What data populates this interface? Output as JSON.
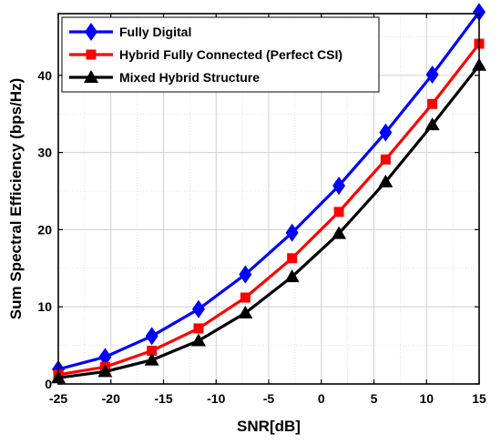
{
  "chart_data": {
    "type": "line",
    "title": "",
    "xlabel": "SNR[dB]",
    "ylabel": "Sum Spectral Efficiency (bps/Hz)",
    "xlim": [
      -25,
      15
    ],
    "ylim": [
      0,
      48
    ],
    "x_ticks": [
      -25,
      -20,
      -15,
      -10,
      -5,
      0,
      5,
      10,
      15
    ],
    "y_ticks": [
      0,
      10,
      20,
      30,
      40
    ],
    "x_minor_grid": [
      -22.5,
      -17.5,
      -12.5,
      -7.5,
      -2.5,
      2.5,
      7.5,
      12.5
    ],
    "y_minor_grid": [
      5,
      15,
      25,
      35,
      45
    ],
    "grid": true,
    "legend_position": "top-left",
    "x": [
      -25,
      -20.55,
      -16.11,
      -11.67,
      -7.22,
      -2.78,
      1.67,
      6.11,
      10.55,
      15
    ],
    "series": [
      {
        "name": "Fully Digital",
        "color": "#0000ff",
        "marker": "diamond",
        "values": [
          1.9,
          3.5,
          6.2,
          9.7,
          14.2,
          19.6,
          25.7,
          32.6,
          40.1,
          48.2
        ]
      },
      {
        "name": "Hybrid Fully Connected (Perfect CSI)",
        "color": "#ff0000",
        "marker": "square",
        "values": [
          1.2,
          2.2,
          4.3,
          7.2,
          11.2,
          16.3,
          22.3,
          29.1,
          36.3,
          44.1
        ]
      },
      {
        "name": "Mixed Hybrid Structure",
        "color": "#000000",
        "marker": "triangle",
        "values": [
          0.8,
          1.6,
          3.1,
          5.6,
          9.2,
          13.9,
          19.5,
          26.2,
          33.6,
          41.3
        ]
      }
    ]
  }
}
